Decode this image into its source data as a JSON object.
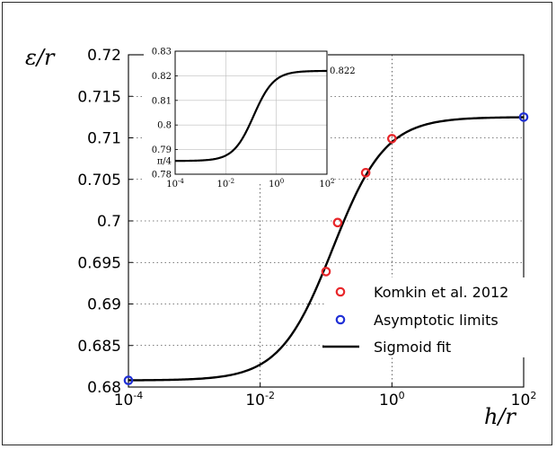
{
  "chart_data": [
    {
      "type": "scatter",
      "xscale": "log",
      "xlim": [
        0.0001,
        100
      ],
      "ylim": [
        0.68,
        0.72
      ],
      "xticks": [
        "10^-4",
        "10^-2",
        "10^0",
        "10^2"
      ],
      "yticks": [
        "0.68",
        "0.685",
        "0.69",
        "0.695",
        "0.7",
        "0.705",
        "0.71",
        "0.715",
        "0.72"
      ],
      "xlabel": "h/r",
      "ylabel": "ε/r",
      "grid": true,
      "legend_position": "bottom-right",
      "series": [
        {
          "name": "Komkin et al. 2012",
          "kind": "scatter",
          "color": "#e8262a",
          "x": [
            0.1,
            0.15,
            0.4,
            1.0
          ],
          "y": [
            0.6939,
            0.6998,
            0.7058,
            0.7099
          ]
        },
        {
          "name": "Asymptotic limits",
          "kind": "scatter",
          "color": "#1f2fd6",
          "x": [
            0.0001,
            100
          ],
          "y": [
            0.6808,
            0.7125
          ]
        },
        {
          "name": "Sigmoid fit",
          "kind": "line",
          "color": "#000000",
          "lower": 0.6808,
          "upper": 0.7125,
          "center_log10": -0.9,
          "slope": 2.5
        }
      ]
    },
    {
      "type": "line",
      "role": "inset",
      "xscale": "log",
      "xlim": [
        0.0001,
        100
      ],
      "ylim": [
        0.78,
        0.83
      ],
      "xticks": [
        "10^-4",
        "10^-2",
        "10^0",
        "10^2"
      ],
      "yticks": [
        "0.78",
        "π/4",
        "0.79",
        "0.8",
        "0.81",
        "0.82",
        "0.83"
      ],
      "grid": true,
      "annotation": "0.822",
      "series": [
        {
          "kind": "line",
          "color": "#000000",
          "lower": 0.7854,
          "upper": 0.822,
          "center_log10": -0.9,
          "slope": 2.5
        }
      ]
    }
  ]
}
